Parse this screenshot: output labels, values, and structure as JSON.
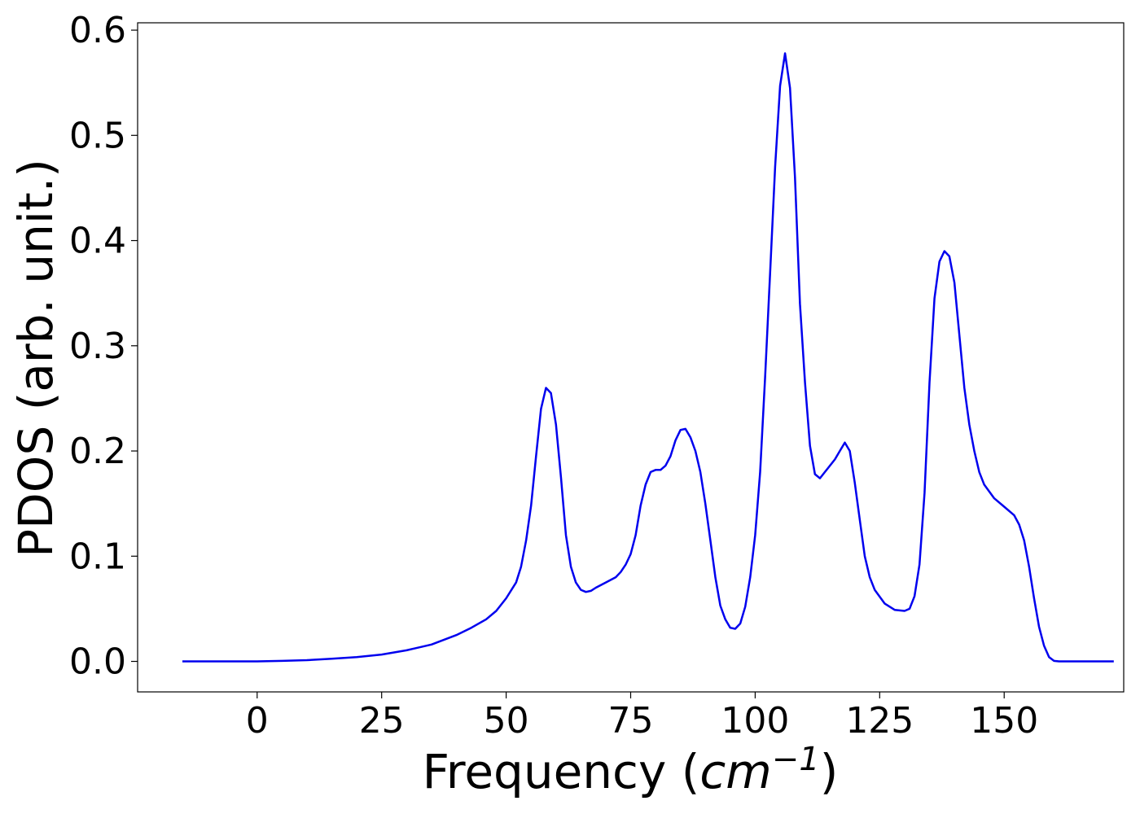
{
  "chart_data": {
    "type": "line",
    "title": "",
    "xlabel": {
      "prefix": "Frequency (",
      "unit_base": "cm",
      "unit_exponent": "−1",
      "suffix": ")"
    },
    "ylabel": "PDOS (arb. unit.)",
    "xlim": [
      -24,
      174
    ],
    "ylim": [
      -0.029,
      0.607
    ],
    "xticks": [
      0,
      25,
      50,
      75,
      100,
      125,
      150
    ],
    "xtick_labels": [
      "0",
      "25",
      "50",
      "75",
      "100",
      "125",
      "150"
    ],
    "yticks": [
      0.0,
      0.1,
      0.2,
      0.3,
      0.4,
      0.5,
      0.6
    ],
    "ytick_labels": [
      "0.0",
      "0.1",
      "0.2",
      "0.3",
      "0.4",
      "0.5",
      "0.6"
    ],
    "grid": false,
    "legend": "none",
    "series": [
      {
        "color": "#0000ee",
        "points": [
          [
            -15,
            0.0
          ],
          [
            -5,
            0.0
          ],
          [
            0,
            0.0
          ],
          [
            5,
            0.0005
          ],
          [
            10,
            0.0012
          ],
          [
            15,
            0.0025
          ],
          [
            20,
            0.004
          ],
          [
            25,
            0.0065
          ],
          [
            30,
            0.0105
          ],
          [
            35,
            0.016
          ],
          [
            40,
            0.025
          ],
          [
            43,
            0.032
          ],
          [
            46,
            0.04
          ],
          [
            48,
            0.048
          ],
          [
            50,
            0.06
          ],
          [
            52,
            0.075
          ],
          [
            53,
            0.09
          ],
          [
            54,
            0.115
          ],
          [
            55,
            0.148
          ],
          [
            56,
            0.195
          ],
          [
            57,
            0.24
          ],
          [
            58,
            0.26
          ],
          [
            59,
            0.255
          ],
          [
            60,
            0.225
          ],
          [
            61,
            0.175
          ],
          [
            62,
            0.12
          ],
          [
            63,
            0.09
          ],
          [
            64,
            0.075
          ],
          [
            65,
            0.068
          ],
          [
            66,
            0.066
          ],
          [
            67,
            0.067
          ],
          [
            68,
            0.07
          ],
          [
            70,
            0.075
          ],
          [
            72,
            0.08
          ],
          [
            73,
            0.085
          ],
          [
            74,
            0.092
          ],
          [
            75,
            0.102
          ],
          [
            76,
            0.12
          ],
          [
            77,
            0.148
          ],
          [
            78,
            0.168
          ],
          [
            79,
            0.18
          ],
          [
            80,
            0.182
          ],
          [
            81,
            0.182
          ],
          [
            82,
            0.186
          ],
          [
            83,
            0.195
          ],
          [
            84,
            0.21
          ],
          [
            85,
            0.22
          ],
          [
            86,
            0.221
          ],
          [
            87,
            0.213
          ],
          [
            88,
            0.2
          ],
          [
            89,
            0.18
          ],
          [
            90,
            0.15
          ],
          [
            91,
            0.115
          ],
          [
            92,
            0.08
          ],
          [
            93,
            0.053
          ],
          [
            94,
            0.04
          ],
          [
            95,
            0.032
          ],
          [
            96,
            0.031
          ],
          [
            97,
            0.036
          ],
          [
            98,
            0.052
          ],
          [
            99,
            0.08
          ],
          [
            100,
            0.12
          ],
          [
            101,
            0.18
          ],
          [
            102,
            0.27
          ],
          [
            103,
            0.37
          ],
          [
            104,
            0.47
          ],
          [
            105,
            0.547
          ],
          [
            106,
            0.578
          ],
          [
            107,
            0.545
          ],
          [
            108,
            0.46
          ],
          [
            109,
            0.34
          ],
          [
            110,
            0.265
          ],
          [
            111,
            0.205
          ],
          [
            112,
            0.178
          ],
          [
            113,
            0.174
          ],
          [
            114,
            0.18
          ],
          [
            116,
            0.192
          ],
          [
            117,
            0.2
          ],
          [
            118,
            0.208
          ],
          [
            119,
            0.2
          ],
          [
            120,
            0.17
          ],
          [
            121,
            0.135
          ],
          [
            122,
            0.1
          ],
          [
            123,
            0.08
          ],
          [
            124,
            0.068
          ],
          [
            126,
            0.055
          ],
          [
            128,
            0.049
          ],
          [
            130,
            0.048
          ],
          [
            131,
            0.05
          ],
          [
            132,
            0.062
          ],
          [
            133,
            0.092
          ],
          [
            134,
            0.16
          ],
          [
            135,
            0.265
          ],
          [
            136,
            0.345
          ],
          [
            137,
            0.38
          ],
          [
            138,
            0.39
          ],
          [
            139,
            0.385
          ],
          [
            140,
            0.36
          ],
          [
            141,
            0.31
          ],
          [
            142,
            0.26
          ],
          [
            143,
            0.225
          ],
          [
            144,
            0.2
          ],
          [
            145,
            0.18
          ],
          [
            146,
            0.168
          ],
          [
            148,
            0.155
          ],
          [
            150,
            0.147
          ],
          [
            152,
            0.139
          ],
          [
            153,
            0.13
          ],
          [
            154,
            0.115
          ],
          [
            155,
            0.09
          ],
          [
            156,
            0.06
          ],
          [
            157,
            0.033
          ],
          [
            158,
            0.015
          ],
          [
            159,
            0.004
          ],
          [
            160,
            0.0005
          ],
          [
            161,
            0.0
          ],
          [
            165,
            0.0
          ],
          [
            172,
            0.0
          ]
        ]
      }
    ]
  }
}
